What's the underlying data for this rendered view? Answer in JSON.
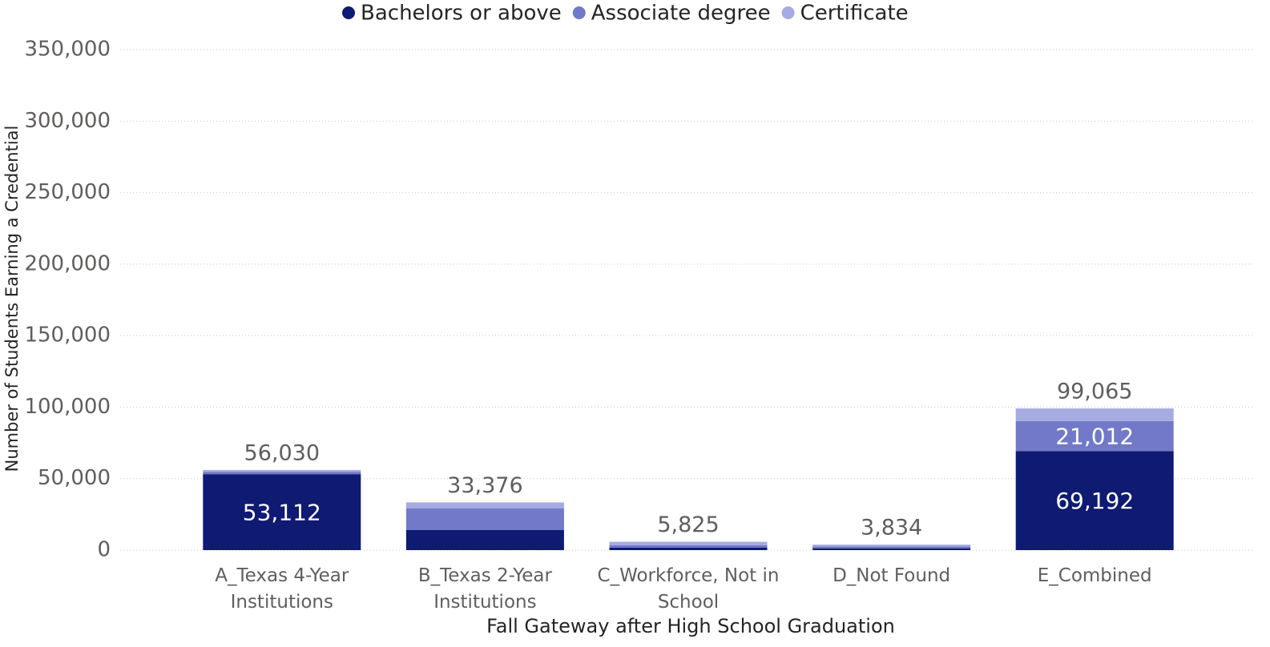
{
  "chart_data": {
    "type": "stacked_bar",
    "x_label": "Fall Gateway after High School Graduation",
    "y_label": "Number of Students Earning a Credential",
    "categories": [
      "A_Texas 4-Year Institutions",
      "B_Texas 2-Year Institutions",
      "C_Workforce, Not in School",
      "D_Not Found",
      "E_Combined"
    ],
    "series": [
      {
        "name": "Bachelors or above",
        "color": "#0f1a73",
        "values": [
          53112,
          14000,
          1800,
          1300,
          69192
        ],
        "value_labels": [
          "53,112",
          null,
          null,
          null,
          "69,192"
        ]
      },
      {
        "name": "Associate degree",
        "color": "#7179c8",
        "values": [
          1680,
          15120,
          1700,
          1200,
          21012
        ],
        "value_labels": [
          null,
          null,
          null,
          null,
          "21,012"
        ]
      },
      {
        "name": "Certificate",
        "color": "#a6abe1",
        "values": [
          1238,
          4256,
          2325,
          1334,
          8861
        ],
        "value_labels": [
          null,
          null,
          null,
          null,
          null
        ]
      }
    ],
    "total_labels": [
      "56,030",
      "33,376",
      "5,825",
      "3,834",
      "99,065"
    ],
    "ylim": [
      0,
      350000
    ],
    "yticks": [
      0,
      {
        "value": 50000,
        "label": "50,000"
      },
      {
        "value": 100000,
        "label": "100,000"
      },
      {
        "value": 150000,
        "label": "150,000"
      },
      {
        "value": 200000,
        "label": "200,000"
      },
      {
        "value": 250000,
        "label": "250,000"
      },
      {
        "value": 300000,
        "label": "300,000"
      },
      {
        "value": 350000,
        "label": "350,000"
      }
    ],
    "grid": true,
    "legend": "top"
  }
}
